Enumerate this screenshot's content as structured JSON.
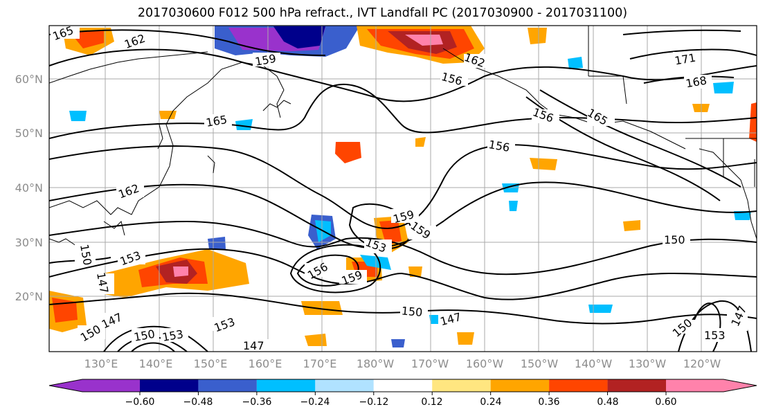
{
  "title": "2017030600 F012 500 hPa refract., IVT Landfall PC (2017030900 - 2017031100)",
  "map": {
    "lat_labels": [
      "60°N",
      "50°N",
      "40°N",
      "30°N",
      "20°N"
    ],
    "lon_labels": [
      "130°E",
      "140°E",
      "150°E",
      "160°E",
      "170°E",
      "180°W",
      "170°W",
      "160°W",
      "150°W",
      "140°W",
      "130°W",
      "120°W"
    ],
    "gridline_color": "#aaaaaa",
    "coastline_color": "#000000"
  },
  "contours": {
    "color": "#000000",
    "labels": [
      "165",
      "162",
      "159",
      "162",
      "156",
      "171",
      "168",
      "165",
      "156",
      "156",
      "165",
      "162",
      "159",
      "159",
      "153",
      "153",
      "156",
      "159",
      "150",
      "150",
      "147",
      "150",
      "147",
      "153",
      "147",
      "150",
      "153",
      "150",
      "147",
      "153",
      "147",
      "150"
    ]
  },
  "colorbar": {
    "tick_labels": [
      "−0.60",
      "−0.48",
      "−0.36",
      "−0.24",
      "−0.12",
      "0.12",
      "0.24",
      "0.36",
      "0.48",
      "0.60"
    ],
    "colors": [
      "#9932cc",
      "#00008b",
      "#3a5fcd",
      "#00bfff",
      "#b0e2ff",
      "#ffffff",
      "#ffe680",
      "#ffa500",
      "#ff4500",
      "#b22222",
      "#ff82ab"
    ]
  }
}
